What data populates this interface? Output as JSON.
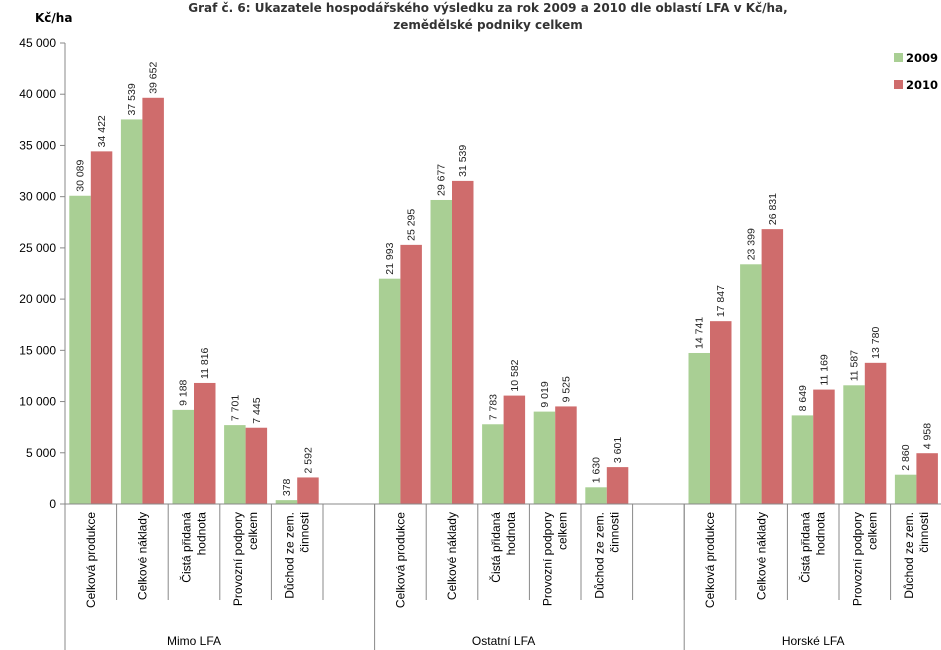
{
  "chart_data": {
    "type": "bar",
    "title_line1": "Graf č. 6: Ukazatele hospodářského výsledku za rok 2009 a 2010 dle oblastí LFA v Kč/ha,",
    "title_line2": "zemědělské podniky celkem",
    "ylabel": "Kč/ha",
    "ylim": [
      0,
      45000
    ],
    "ytick_step": 5000,
    "ytick_labels": [
      "0",
      "5 000",
      "10 000",
      "15 000",
      "20 000",
      "25 000",
      "30 000",
      "35 000",
      "40 000",
      "45 000"
    ],
    "grid": false,
    "legend_position": "top-right",
    "groups": [
      {
        "name": "Mimo LFA",
        "categories": [
          [
            "Celková produkce"
          ],
          [
            "Celkové náklady"
          ],
          [
            "Čistá přidaná",
            "hodnota"
          ],
          [
            "Provozní podpory",
            "celkem"
          ],
          [
            "Důchod ze zem.",
            "činnosti"
          ]
        ]
      },
      {
        "name": "Ostatní LFA",
        "categories": [
          [
            "Celková produkce"
          ],
          [
            "Celkové náklady"
          ],
          [
            "Čistá přidaná",
            "hodnota"
          ],
          [
            "Provozní podpory",
            "celkem"
          ],
          [
            "Důchod ze zem.",
            "činnosti"
          ]
        ]
      },
      {
        "name": "Horské LFA",
        "categories": [
          [
            "Celková produkce"
          ],
          [
            "Celkové náklady"
          ],
          [
            "Čistá přidaná",
            "hodnota"
          ],
          [
            "Provozní podpory",
            "celkem"
          ],
          [
            "Důchod ze zem.",
            "činnosti"
          ]
        ]
      }
    ],
    "series": [
      {
        "name": "2009",
        "color": "#a9cf94",
        "values": [
          30089,
          37539,
          9188,
          7701,
          378,
          21993,
          29677,
          7783,
          9019,
          1630,
          14741,
          23399,
          8649,
          11587,
          2860
        ],
        "labels": [
          "30 089",
          "37 539",
          "9 188",
          "7 701",
          "378",
          "21 993",
          "29 677",
          "7 783",
          "9 019",
          "1 630",
          "14 741",
          "23 399",
          "8 649",
          "11 587",
          "2 860"
        ]
      },
      {
        "name": "2010",
        "color": "#cf6c6c",
        "values": [
          34422,
          39652,
          11816,
          7445,
          2592,
          25295,
          31539,
          10582,
          9525,
          3601,
          17847,
          26831,
          11169,
          13780,
          4958
        ],
        "labels": [
          "34 422",
          "39 652",
          "11 816",
          "7 445",
          "2 592",
          "25 295",
          "31 539",
          "10 582",
          "9 525",
          "3 601",
          "17 847",
          "26 831",
          "11 169",
          "13 780",
          "4 958"
        ]
      }
    ]
  }
}
